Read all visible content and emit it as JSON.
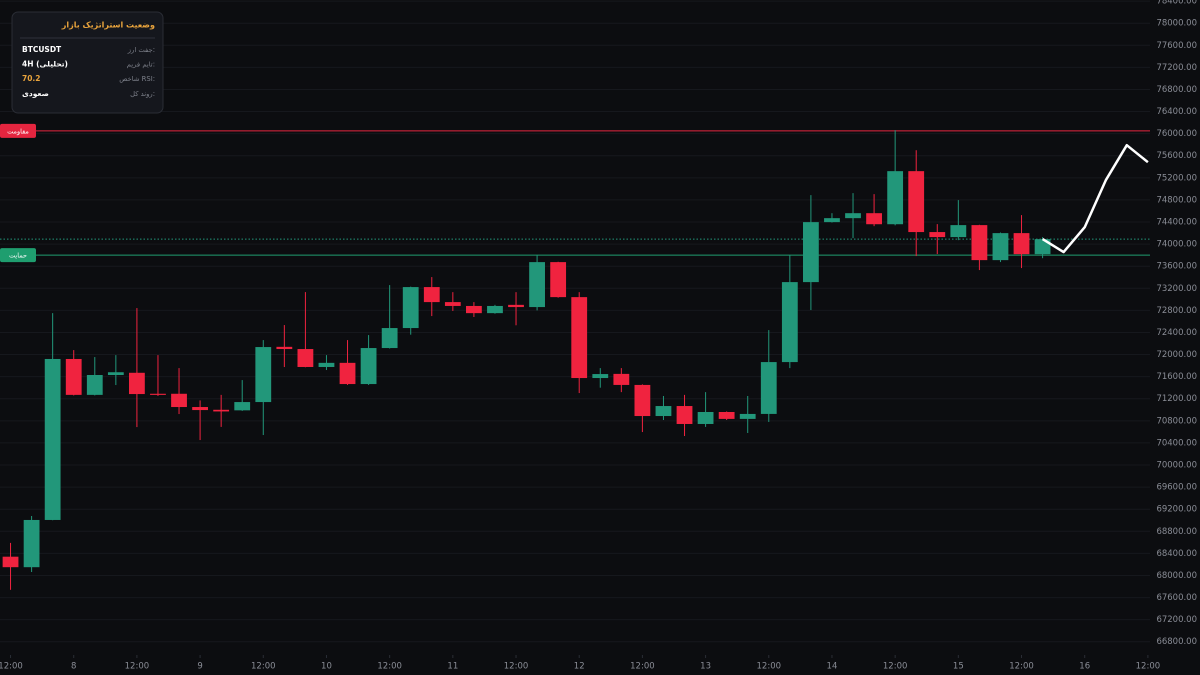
{
  "chart_data": {
    "type": "candlestick",
    "open": [
      68340,
      68150,
      69005,
      71920,
      71270,
      71630,
      71670,
      71290,
      71290,
      71050,
      71000,
      70990,
      71140,
      72140,
      72100,
      71775,
      71850,
      71466,
      72118,
      72480,
      73222,
      72950,
      72880,
      72750,
      72900,
      72860,
      73674,
      73040,
      71575,
      71650,
      71450,
      70887,
      71068,
      70743,
      70960,
      70835,
      70925,
      71864,
      73312,
      74398,
      74470,
      74560,
      74360,
      75321,
      74218,
      74127,
      74344,
      73710,
      74199,
      73818
    ],
    "high": [
      68590,
      69077,
      72751,
      72081,
      71955,
      71990,
      72842,
      71990,
      71755,
      71170,
      71270,
      71538,
      72262,
      72534,
      73131,
      71990,
      72262,
      72353,
      73258,
      73230,
      73403,
      73130,
      72950,
      72900,
      73130,
      73800,
      73680,
      73130,
      71755,
      71755,
      71460,
      71250,
      71270,
      71320,
      70970,
      71250,
      72443,
      73800,
      74887,
      74560,
      74923,
      74905,
      76063,
      75700,
      74362,
      74797,
      74350,
      74210,
      74525,
      74127
    ],
    "low": [
      67740,
      68063,
      69000,
      71260,
      71260,
      71448,
      70687,
      71250,
      70923,
      70452,
      70690,
      70980,
      70543,
      71774,
      71770,
      71720,
      71450,
      71450,
      72110,
      72360,
      72697,
      72790,
      72680,
      72740,
      72530,
      72800,
      73030,
      71303,
      71400,
      71320,
      70597,
      70815,
      70525,
      70690,
      70815,
      70580,
      70780,
      71755,
      72806,
      74390,
      74108,
      74325,
      74340,
      73783,
      73820,
      74072,
      73530,
      73675,
      73566,
      73745
    ],
    "close": [
      68150,
      69005,
      71920,
      71270,
      71630,
      71680,
      71285,
      71270,
      71050,
      70995,
      70970,
      71140,
      72136,
      72100,
      71775,
      71850,
      71466,
      72118,
      72480,
      73222,
      72950,
      72880,
      72750,
      72880,
      72860,
      73674,
      73040,
      71575,
      71647,
      71450,
      70887,
      71068,
      70743,
      70960,
      70835,
      70925,
      71864,
      73312,
      74398,
      74470,
      74560,
      74360,
      75321,
      74218,
      74127,
      74344,
      73710,
      74199,
      73818,
      74090
    ],
    "up_color": "#22977a",
    "down_color": "#f0233f",
    "projection": {
      "x": [
        49,
        50,
        51,
        52,
        53,
        54
      ],
      "values": [
        74090,
        73855,
        74307,
        75157,
        75791,
        75483
      ],
      "color": "#ffffff"
    },
    "levels": [
      {
        "label": "مقاومت",
        "value": 76050,
        "color": "#e5253f"
      },
      {
        "label": "حمایت",
        "value": 73800,
        "color": "#1f9e6f"
      }
    ],
    "xlim": [
      -0.5,
      54.1
    ],
    "xticks": [
      {
        "value": 0,
        "label": "12:00"
      },
      {
        "value": 3,
        "label": "8"
      },
      {
        "value": 6,
        "label": "12:00"
      },
      {
        "value": 9,
        "label": "9"
      },
      {
        "value": 12,
        "label": "12:00"
      },
      {
        "value": 15,
        "label": "10"
      },
      {
        "value": 18,
        "label": "12:00"
      },
      {
        "value": 21,
        "label": "11"
      },
      {
        "value": 24,
        "label": "12:00"
      },
      {
        "value": 27,
        "label": "12"
      },
      {
        "value": 30,
        "label": "12:00"
      },
      {
        "value": 33,
        "label": "13"
      },
      {
        "value": 36,
        "label": "12:00"
      },
      {
        "value": 39,
        "label": "14"
      },
      {
        "value": 42,
        "label": "12:00"
      },
      {
        "value": 45,
        "label": "15"
      },
      {
        "value": 48,
        "label": "12:00"
      },
      {
        "value": 51,
        "label": "16"
      },
      {
        "value": 54,
        "label": "12:00"
      }
    ],
    "ylim": [
      66560,
      78420
    ],
    "yticks": [
      {
        "value": 66800,
        "label": "66800.00"
      },
      {
        "value": 67200,
        "label": "67200.00"
      },
      {
        "value": 67600,
        "label": "67600.00"
      },
      {
        "value": 68000,
        "label": "68000.00"
      },
      {
        "value": 68400,
        "label": "68400.00"
      },
      {
        "value": 68800,
        "label": "68800.00"
      },
      {
        "value": 69200,
        "label": "69200.00"
      },
      {
        "value": 69600,
        "label": "69600.00"
      },
      {
        "value": 70000,
        "label": "70000.00"
      },
      {
        "value": 70400,
        "label": "70400.00"
      },
      {
        "value": 70800,
        "label": "70800.00"
      },
      {
        "value": 71200,
        "label": "71200.00"
      },
      {
        "value": 71600,
        "label": "71600.00"
      },
      {
        "value": 72000,
        "label": "72000.00"
      },
      {
        "value": 72400,
        "label": "72400.00"
      },
      {
        "value": 72800,
        "label": "72800.00"
      },
      {
        "value": 73200,
        "label": "73200.00"
      },
      {
        "value": 73600,
        "label": "73600.00"
      },
      {
        "value": 74000,
        "label": "74000.00"
      },
      {
        "value": 74400,
        "label": "74400.00"
      },
      {
        "value": 74800,
        "label": "74800.00"
      },
      {
        "value": 75200,
        "label": "75200.00"
      },
      {
        "value": 75600,
        "label": "75600.00"
      },
      {
        "value": 76000,
        "label": "76000.00"
      },
      {
        "value": 76400,
        "label": "76400.00"
      },
      {
        "value": 76800,
        "label": "76800.00"
      },
      {
        "value": 77200,
        "label": "77200.00"
      },
      {
        "value": 77600,
        "label": "77600.00"
      },
      {
        "value": 78000,
        "label": "78000.00"
      },
      {
        "value": 78400,
        "label": "78400.00"
      }
    ],
    "grid": true
  },
  "panel": {
    "title": "وضعیت استراتژیک بازار",
    "rows": [
      {
        "label": "جفت ارز:",
        "value": "BTCUSDT"
      },
      {
        "label": "تایم فریم:",
        "value": "4H (تحلیلی)"
      },
      {
        "label": "شاخص RSI:",
        "value": "70.2"
      },
      {
        "label": "روند کل:",
        "value": "صعودی"
      }
    ]
  }
}
